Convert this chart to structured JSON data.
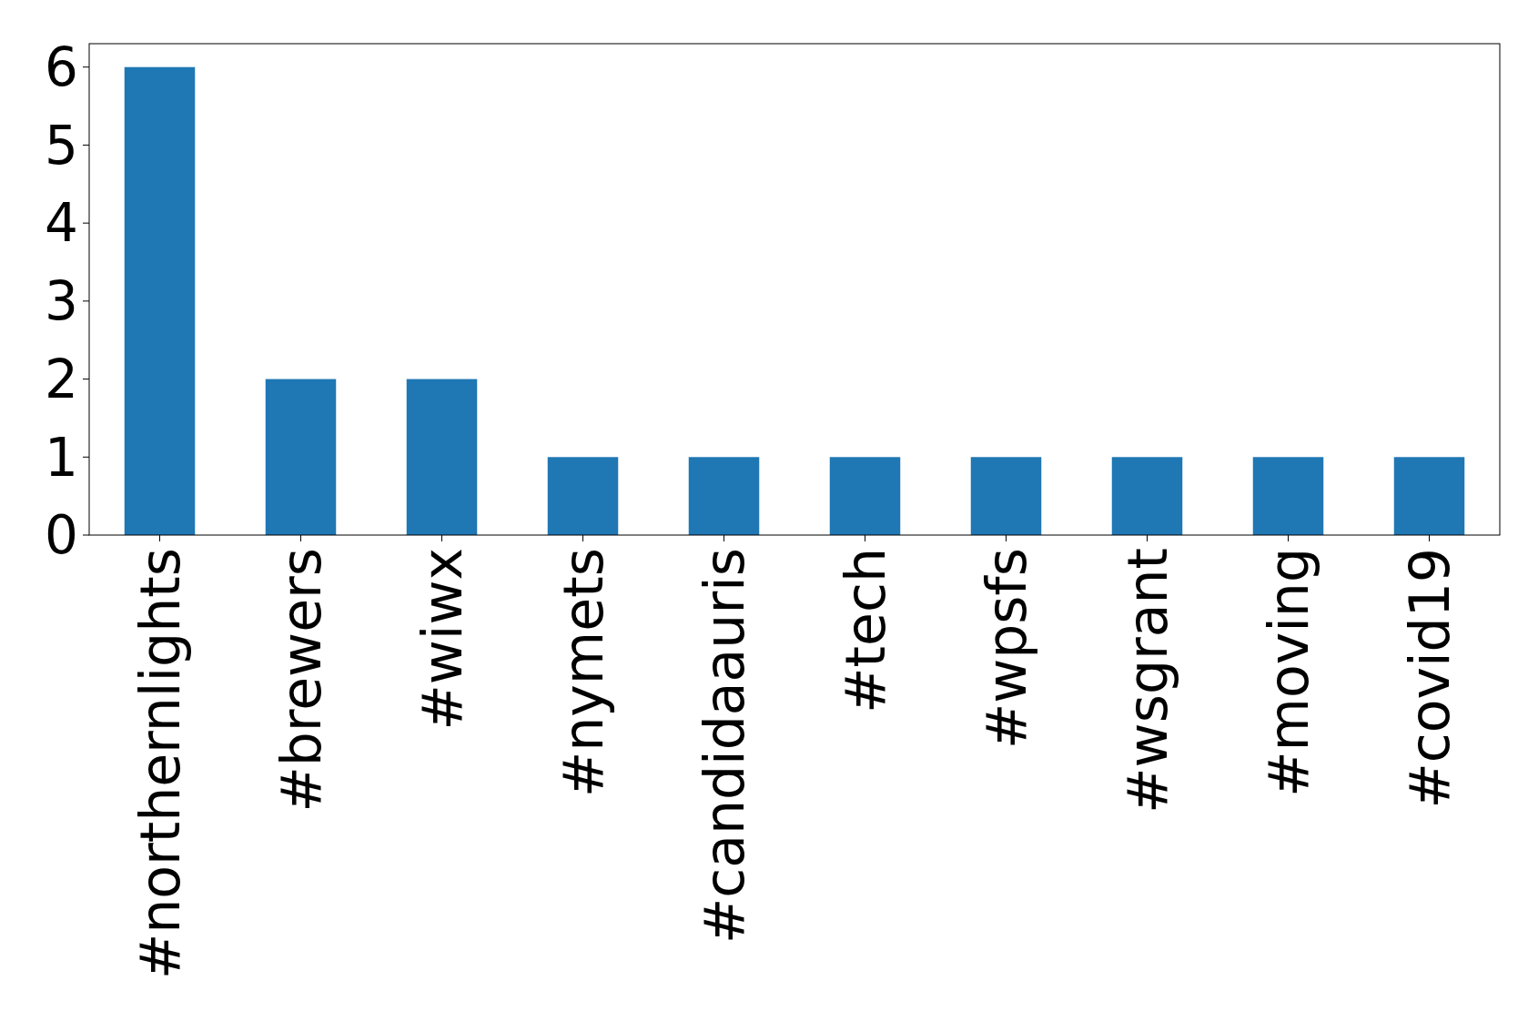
{
  "chart_data": {
    "type": "bar",
    "categories": [
      "#northernlights",
      "#brewers",
      "#wiwx",
      "#nymets",
      "#candidaauris",
      "#tech",
      "#wpsfs",
      "#wsgrant",
      "#moving",
      "#covid19"
    ],
    "values": [
      6,
      2,
      2,
      1,
      1,
      1,
      1,
      1,
      1,
      1
    ],
    "color": "#1f77b4",
    "ylim": [
      0,
      6.3
    ],
    "yticks": [
      0,
      1,
      2,
      3,
      4,
      5,
      6
    ],
    "grid": false
  }
}
